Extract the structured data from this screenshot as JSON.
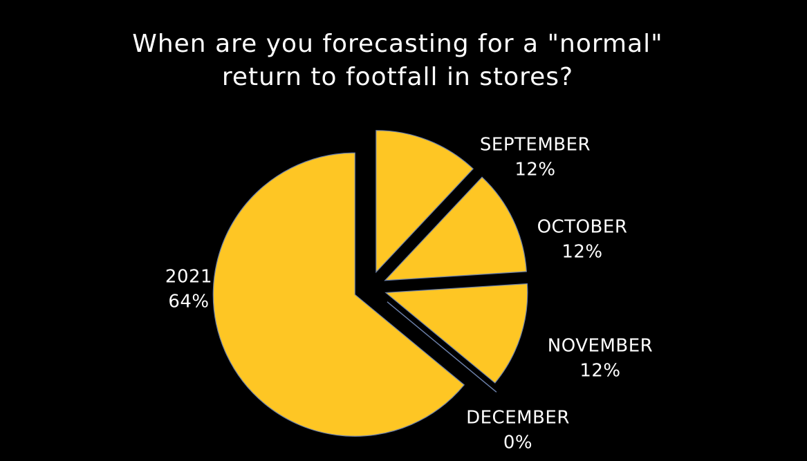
{
  "chart_data": {
    "type": "pie",
    "title_lines": [
      "When are you forecasting for a \"normal\"",
      "return to footfall in stores?"
    ],
    "slices": [
      {
        "label": "SEPTEMBER",
        "value": 12,
        "value_label": "12%"
      },
      {
        "label": "OCTOBER",
        "value": 12,
        "value_label": "12%"
      },
      {
        "label": "NOVEMBER",
        "value": 12,
        "value_label": "12%"
      },
      {
        "label": "DECEMBER",
        "value": 0,
        "value_label": "0%"
      },
      {
        "label": "2021",
        "value": 64,
        "value_label": "64%"
      }
    ],
    "colors": {
      "slice_fill": "#FEC624",
      "slice_edge": "#6B7FA8",
      "background": "#000000",
      "text": "#FFFFFF"
    },
    "slices_exploded": true,
    "legend": "none"
  }
}
